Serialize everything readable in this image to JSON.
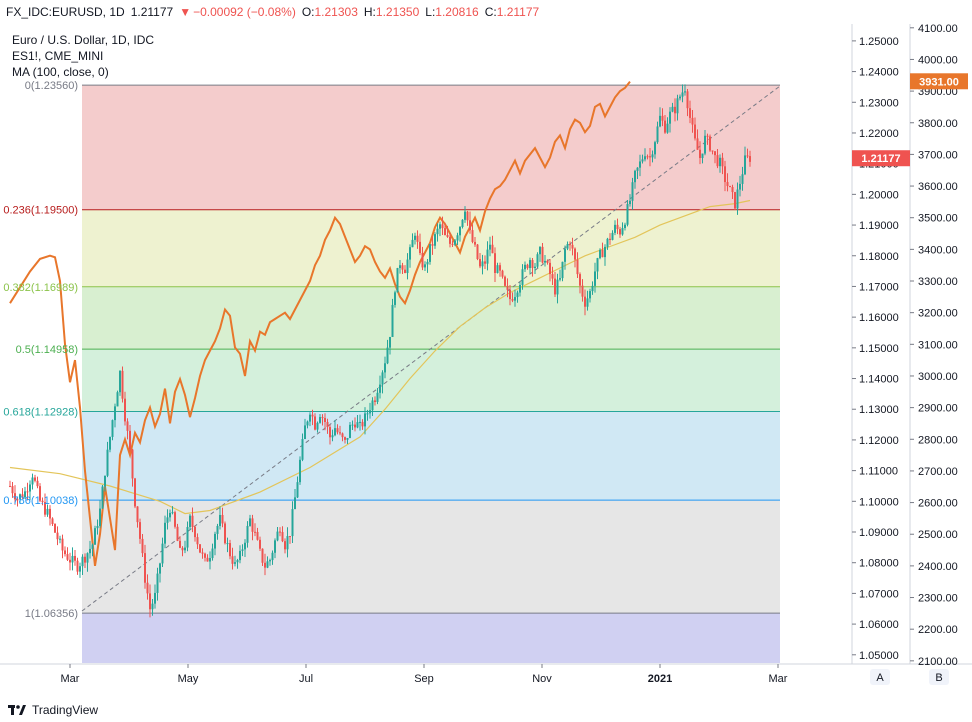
{
  "header": {
    "symbol": "FX_IDC:EURUSD, 1D",
    "last": "1.21177",
    "change": "−0.00092 (−0.08%)",
    "open_label": "O:",
    "open": "1.21303",
    "high_label": "H:",
    "high": "1.21350",
    "low_label": "L:",
    "low": "1.20816",
    "close_label": "C:",
    "close": "1.21177"
  },
  "legend": {
    "line1": "Euro / U.S. Dollar, 1D, IDC",
    "line2": "ES1!, CME_MINI",
    "line3": "MA (100, close, 0)"
  },
  "footer": {
    "brand": "TradingView",
    "btn_a": "A",
    "btn_b": "B"
  },
  "colors": {
    "candle_up": "#26a69a",
    "candle_down": "#ef5350",
    "es_line": "#e8762b",
    "ma_line": "#e3c55a",
    "axis_text": "#131722"
  },
  "chart_data": {
    "type": "candlestick",
    "x_ticks": [
      "Mar",
      "May",
      "Jul",
      "Sep",
      "Nov",
      "2021",
      "Mar"
    ],
    "right_axis": {
      "ticks": [
        "1.25000",
        "1.24000",
        "1.23000",
        "1.22000",
        "1.21000",
        "1.20000",
        "1.19000",
        "1.18000",
        "1.17000",
        "1.16000",
        "1.15000",
        "1.14000",
        "1.13000",
        "1.12000",
        "1.11000",
        "1.10000",
        "1.09000",
        "1.08000",
        "1.07000",
        "1.06000",
        "1.05000"
      ],
      "range": [
        1.047,
        1.2555
      ],
      "last_price_label": "1.21177"
    },
    "far_right_axis": {
      "ticks": [
        "4100.00",
        "4000.00",
        "3900.00",
        "3800.00",
        "3700.00",
        "3600.00",
        "3500.00",
        "3400.00",
        "3300.00",
        "3200.00",
        "3100.00",
        "3000.00",
        "2900.00",
        "2800.00",
        "2700.00",
        "2600.00",
        "2500.00",
        "2400.00",
        "2300.00",
        "2200.00",
        "2100.00"
      ],
      "range": [
        2090,
        4112
      ],
      "last_value_label": "3931.00"
    },
    "fib_levels": [
      {
        "label": "0(1.23560)",
        "value": 1.2356,
        "color": "#787b86"
      },
      {
        "label": "0.236(1.19500)",
        "value": 1.195,
        "color": "#b71c1c"
      },
      {
        "label": "0.382(1.16989)",
        "value": 1.16989,
        "color": "#8bc34a"
      },
      {
        "label": "0.5(1.14958)",
        "value": 1.14958,
        "color": "#4caf50"
      },
      {
        "label": "0.618(1.12928)",
        "value": 1.12928,
        "color": "#26a69a"
      },
      {
        "label": "0.786(1.10038)",
        "value": 1.10038,
        "color": "#2196f3"
      },
      {
        "label": "1(1.06356)",
        "value": 1.06356,
        "color": "#787b86"
      }
    ],
    "eurusd_path": [
      [
        0,
        1.105
      ],
      [
        3,
        1.101
      ],
      [
        6,
        1.103
      ],
      [
        9,
        1.109
      ],
      [
        12,
        1.1
      ],
      [
        15,
        1.096
      ],
      [
        18,
        1.09
      ],
      [
        21,
        1.084
      ],
      [
        24,
        1.081
      ],
      [
        27,
        1.079
      ],
      [
        30,
        1.082
      ],
      [
        33,
        1.086
      ],
      [
        36,
        1.097
      ],
      [
        38,
        1.11
      ],
      [
        40,
        1.121
      ],
      [
        42,
        1.132
      ],
      [
        44,
        1.142
      ],
      [
        46,
        1.128
      ],
      [
        48,
        1.116
      ],
      [
        50,
        1.1
      ],
      [
        52,
        1.088
      ],
      [
        54,
        1.075
      ],
      [
        56,
        1.065
      ],
      [
        58,
        1.069
      ],
      [
        60,
        1.08
      ],
      [
        62,
        1.092
      ],
      [
        64,
        1.098
      ],
      [
        66,
        1.091
      ],
      [
        68,
        1.083
      ],
      [
        70,
        1.086
      ],
      [
        72,
        1.094
      ],
      [
        74,
        1.09
      ],
      [
        76,
        1.084
      ],
      [
        78,
        1.08
      ],
      [
        80,
        1.083
      ],
      [
        82,
        1.09
      ],
      [
        84,
        1.094
      ],
      [
        86,
        1.088
      ],
      [
        88,
        1.083
      ],
      [
        90,
        1.079
      ],
      [
        92,
        1.082
      ],
      [
        94,
        1.088
      ],
      [
        96,
        1.094
      ],
      [
        98,
        1.089
      ],
      [
        100,
        1.083
      ],
      [
        102,
        1.079
      ],
      [
        104,
        1.081
      ],
      [
        106,
        1.087
      ],
      [
        108,
        1.092
      ],
      [
        110,
        1.086
      ],
      [
        112,
        1.09
      ],
      [
        114,
        1.101
      ],
      [
        116,
        1.113
      ],
      [
        118,
        1.124
      ],
      [
        120,
        1.13
      ],
      [
        122,
        1.125
      ],
      [
        124,
        1.129
      ],
      [
        126,
        1.126
      ],
      [
        128,
        1.121
      ],
      [
        130,
        1.124
      ],
      [
        132,
        1.121
      ],
      [
        134,
        1.119
      ],
      [
        136,
        1.124
      ],
      [
        138,
        1.126
      ],
      [
        140,
        1.124
      ],
      [
        142,
        1.127
      ],
      [
        144,
        1.131
      ],
      [
        146,
        1.134
      ],
      [
        148,
        1.14
      ],
      [
        150,
        1.146
      ],
      [
        152,
        1.155
      ],
      [
        154,
        1.17
      ],
      [
        156,
        1.178
      ],
      [
        158,
        1.176
      ],
      [
        160,
        1.181
      ],
      [
        162,
        1.188
      ],
      [
        164,
        1.179
      ],
      [
        166,
        1.176
      ],
      [
        168,
        1.182
      ],
      [
        170,
        1.186
      ],
      [
        172,
        1.19
      ],
      [
        174,
        1.186
      ],
      [
        176,
        1.184
      ],
      [
        178,
        1.186
      ],
      [
        180,
        1.19
      ],
      [
        182,
        1.196
      ],
      [
        184,
        1.187
      ],
      [
        186,
        1.182
      ],
      [
        188,
        1.176
      ],
      [
        190,
        1.178
      ],
      [
        192,
        1.184
      ],
      [
        194,
        1.176
      ],
      [
        196,
        1.174
      ],
      [
        198,
        1.169
      ],
      [
        200,
        1.166
      ],
      [
        202,
        1.168
      ],
      [
        204,
        1.172
      ],
      [
        206,
        1.176
      ],
      [
        208,
        1.179
      ],
      [
        210,
        1.177
      ],
      [
        212,
        1.181
      ],
      [
        214,
        1.178
      ],
      [
        216,
        1.174
      ],
      [
        218,
        1.169
      ],
      [
        220,
        1.172
      ],
      [
        222,
        1.182
      ],
      [
        224,
        1.185
      ],
      [
        226,
        1.178
      ],
      [
        228,
        1.17
      ],
      [
        230,
        1.165
      ],
      [
        232,
        1.168
      ],
      [
        234,
        1.175
      ],
      [
        236,
        1.18
      ],
      [
        238,
        1.183
      ],
      [
        240,
        1.186
      ],
      [
        242,
        1.189
      ],
      [
        244,
        1.188
      ],
      [
        246,
        1.192
      ],
      [
        248,
        1.198
      ],
      [
        250,
        1.206
      ],
      [
        252,
        1.21
      ],
      [
        254,
        1.214
      ],
      [
        256,
        1.212
      ],
      [
        258,
        1.218
      ],
      [
        260,
        1.225
      ],
      [
        262,
        1.222
      ],
      [
        264,
        1.226
      ],
      [
        266,
        1.228
      ],
      [
        268,
        1.232
      ],
      [
        270,
        1.235
      ],
      [
        272,
        1.225
      ],
      [
        274,
        1.217
      ],
      [
        276,
        1.212
      ],
      [
        278,
        1.218
      ],
      [
        280,
        1.216
      ],
      [
        282,
        1.212
      ],
      [
        284,
        1.21
      ],
      [
        286,
        1.205
      ],
      [
        288,
        1.201
      ],
      [
        290,
        1.197
      ],
      [
        292,
        1.204
      ],
      [
        294,
        1.211
      ],
      [
        296,
        1.212
      ]
    ],
    "es1_path": [
      [
        0,
        3230
      ],
      [
        4,
        3280
      ],
      [
        8,
        3330
      ],
      [
        12,
        3370
      ],
      [
        16,
        3380
      ],
      [
        18,
        3375
      ],
      [
        20,
        3300
      ],
      [
        22,
        3100
      ],
      [
        24,
        2980
      ],
      [
        26,
        3050
      ],
      [
        28,
        2900
      ],
      [
        30,
        2700
      ],
      [
        32,
        2550
      ],
      [
        34,
        2400
      ],
      [
        36,
        2500
      ],
      [
        38,
        2650
      ],
      [
        40,
        2550
      ],
      [
        42,
        2450
      ],
      [
        44,
        2750
      ],
      [
        46,
        2800
      ],
      [
        48,
        2750
      ],
      [
        50,
        2820
      ],
      [
        52,
        2790
      ],
      [
        54,
        2860
      ],
      [
        56,
        2900
      ],
      [
        58,
        2840
      ],
      [
        60,
        2880
      ],
      [
        62,
        2960
      ],
      [
        64,
        2850
      ],
      [
        66,
        2950
      ],
      [
        68,
        2990
      ],
      [
        70,
        2940
      ],
      [
        72,
        2870
      ],
      [
        74,
        2930
      ],
      [
        76,
        3000
      ],
      [
        78,
        3050
      ],
      [
        80,
        3080
      ],
      [
        82,
        3110
      ],
      [
        84,
        3150
      ],
      [
        86,
        3210
      ],
      [
        88,
        3190
      ],
      [
        90,
        3090
      ],
      [
        92,
        3070
      ],
      [
        94,
        3000
      ],
      [
        96,
        3110
      ],
      [
        98,
        3080
      ],
      [
        100,
        3140
      ],
      [
        102,
        3130
      ],
      [
        104,
        3170
      ],
      [
        106,
        3180
      ],
      [
        108,
        3190
      ],
      [
        110,
        3200
      ],
      [
        112,
        3180
      ],
      [
        114,
        3210
      ],
      [
        116,
        3240
      ],
      [
        118,
        3270
      ],
      [
        120,
        3300
      ],
      [
        122,
        3350
      ],
      [
        124,
        3380
      ],
      [
        126,
        3430
      ],
      [
        128,
        3460
      ],
      [
        130,
        3500
      ],
      [
        132,
        3480
      ],
      [
        134,
        3440
      ],
      [
        136,
        3400
      ],
      [
        138,
        3360
      ],
      [
        140,
        3380
      ],
      [
        142,
        3410
      ],
      [
        144,
        3400
      ],
      [
        146,
        3360
      ],
      [
        148,
        3330
      ],
      [
        150,
        3310
      ],
      [
        152,
        3340
      ],
      [
        154,
        3290
      ],
      [
        156,
        3250
      ],
      [
        158,
        3230
      ],
      [
        160,
        3270
      ],
      [
        162,
        3320
      ],
      [
        164,
        3360
      ],
      [
        166,
        3390
      ],
      [
        168,
        3420
      ],
      [
        170,
        3470
      ],
      [
        172,
        3500
      ],
      [
        174,
        3480
      ],
      [
        176,
        3450
      ],
      [
        178,
        3420
      ],
      [
        180,
        3390
      ],
      [
        182,
        3440
      ],
      [
        184,
        3470
      ],
      [
        186,
        3500
      ],
      [
        188,
        3460
      ],
      [
        190,
        3520
      ],
      [
        192,
        3560
      ],
      [
        194,
        3590
      ],
      [
        196,
        3600
      ],
      [
        198,
        3620
      ],
      [
        200,
        3650
      ],
      [
        202,
        3680
      ],
      [
        204,
        3640
      ],
      [
        206,
        3680
      ],
      [
        208,
        3700
      ],
      [
        210,
        3720
      ],
      [
        212,
        3690
      ],
      [
        214,
        3660
      ],
      [
        216,
        3690
      ],
      [
        218,
        3740
      ],
      [
        220,
        3760
      ],
      [
        222,
        3720
      ],
      [
        224,
        3780
      ],
      [
        226,
        3810
      ],
      [
        228,
        3800
      ],
      [
        230,
        3770
      ],
      [
        232,
        3790
      ],
      [
        234,
        3850
      ],
      [
        236,
        3860
      ],
      [
        238,
        3820
      ],
      [
        240,
        3850
      ],
      [
        242,
        3880
      ],
      [
        244,
        3900
      ],
      [
        246,
        3910
      ],
      [
        248,
        3930
      ]
    ],
    "ma_path": [
      [
        0,
        1.111
      ],
      [
        20,
        1.109
      ],
      [
        40,
        1.105
      ],
      [
        60,
        1.1
      ],
      [
        70,
        1.096
      ],
      [
        80,
        1.097
      ],
      [
        100,
        1.103
      ],
      [
        120,
        1.111
      ],
      [
        140,
        1.121
      ],
      [
        150,
        1.13
      ],
      [
        160,
        1.14
      ],
      [
        170,
        1.149
      ],
      [
        180,
        1.157
      ],
      [
        190,
        1.163
      ],
      [
        200,
        1.168
      ],
      [
        210,
        1.172
      ],
      [
        220,
        1.176
      ],
      [
        230,
        1.18
      ],
      [
        240,
        1.183
      ],
      [
        250,
        1.186
      ],
      [
        260,
        1.19
      ],
      [
        270,
        1.193
      ],
      [
        280,
        1.196
      ],
      [
        290,
        1.197
      ],
      [
        296,
        1.198
      ]
    ]
  }
}
